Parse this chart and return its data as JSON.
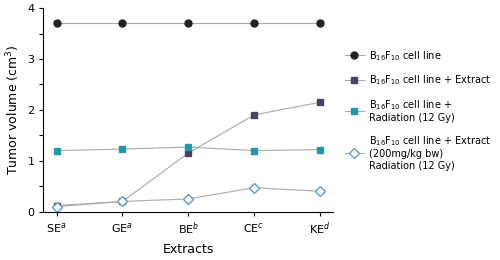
{
  "x_labels_plain": [
    "SE$^a$",
    "GE$^a$",
    "BE$^b$",
    "CE$^c$",
    "KE$^d$"
  ],
  "series": [
    {
      "name": "B$_{16}$F$_{10}$ cell line",
      "values": [
        3.7,
        3.7,
        3.7,
        3.7,
        3.7
      ],
      "line_color": "#aaaaaa",
      "marker_color": "#222222",
      "marker": "o",
      "markersize": 5,
      "markerfacecolor": "#222222",
      "markeredgecolor": "#222222"
    },
    {
      "name": "B$_{16}$F$_{10}$ cell line + Extract",
      "values": [
        0.12,
        0.2,
        1.15,
        1.9,
        2.15
      ],
      "line_color": "#aaaaaa",
      "marker": "s",
      "markersize": 4,
      "markerfacecolor": "#444466",
      "markeredgecolor": "#444466"
    },
    {
      "name": "B$_{16}$F$_{10}$ cell line +\nRadiation (12 Gy)",
      "values": [
        1.2,
        1.23,
        1.27,
        1.2,
        1.22
      ],
      "line_color": "#aaaaaa",
      "marker": "s",
      "markersize": 4,
      "markerfacecolor": "#2299aa",
      "markeredgecolor": "#2299aa"
    },
    {
      "name": "B$_{16}$F$_{10}$ cell line + Extract\n(200mg/kg bw)\nRadiation (12 Gy)",
      "values": [
        0.1,
        0.2,
        0.25,
        0.47,
        0.4
      ],
      "line_color": "#aaaaaa",
      "marker": "D",
      "markersize": 5,
      "markerfacecolor": "#ffffff",
      "markeredgecolor": "#6699cc"
    }
  ],
  "legend_entries": [
    "B$_{16}$F$_{10}$ cell line",
    "B$_{16}$F$_{10}$ cell line + Extract",
    "B$_{16}$F$_{10}$ cell line +\nRadiation (12 Gy)",
    "B$_{16}$F$_{10}$ cell line + Extract\n(200mg/kg bw)\nRadiation (12 Gy)"
  ],
  "xlabel": "Extracts",
  "ylabel": "Tumor volume (cm$^3$)",
  "ylim": [
    0,
    4.0
  ],
  "yticks": [
    0,
    0.5,
    1.0,
    1.5,
    2.0,
    2.5,
    3.0,
    3.5,
    4.0
  ],
  "ytick_labels": [
    "0",
    "",
    "1",
    "",
    "2",
    "",
    "3",
    "",
    "4"
  ],
  "background_color": "#ffffff",
  "figsize": [
    5.0,
    2.6
  ],
  "dpi": 100
}
